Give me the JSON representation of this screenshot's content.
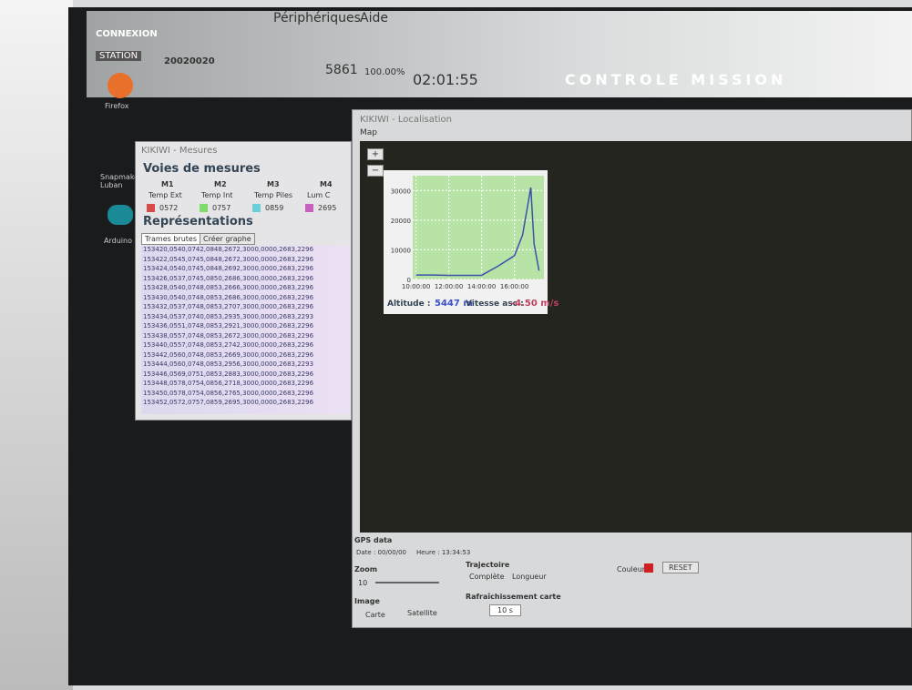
{
  "topbar": {
    "menu": [
      "Périphériques",
      "Aide"
    ],
    "connexion": "CONNEXION",
    "station_label": "STATION",
    "station": "20020020",
    "frames_count": "5861",
    "percent": "100.00%",
    "clock": "02:01:55",
    "banner": "CONTROLE MISSION"
  },
  "desktop_icons": [
    "Firefox",
    "Snapmaker Luban",
    "Arduino"
  ],
  "mesures": {
    "title": "KIKIWI - Mesures",
    "section": "Voies de mesures",
    "channels": [
      {
        "id": "M1",
        "name": "Temp Ext",
        "value": "0572",
        "color": "#d94a4a"
      },
      {
        "id": "M2",
        "name": "Temp Int",
        "value": "0757",
        "color": "#7ddc6a"
      },
      {
        "id": "M3",
        "name": "Temp Piles",
        "value": "0859",
        "color": "#6ad0d8"
      },
      {
        "id": "M4",
        "name": "Lum C",
        "value": "2695",
        "color": "#c860c0"
      }
    ],
    "representations": "Représentations",
    "tabs": [
      "Trames brutes",
      "Créer graphe"
    ],
    "frames": [
      "153420,0540,0742,0848,2672,3000,0000,2683,2296",
      "153422,0545,0745,0848,2672,3000,0000,2683,2296",
      "153424,0540,0745,0848,2692,3000,0000,2683,2296",
      "153426,0537,0745,0850,2686,3000,0000,2683,2296",
      "153428,0540,0748,0853,2666,3000,0000,2683,2296",
      "153430,0540,0748,0853,2686,3000,0000,2683,2296",
      "153432,0537,0748,0853,2707,3000,0000,2683,2296",
      "153434,0537,0740,0853,2935,3000,0000,2683,2293",
      "153436,0551,0748,0853,2921,3000,0000,2683,2296",
      "153438,0557,0748,0853,2672,3000,0000,2683,2296",
      "153440,0557,0748,0853,2742,3000,0000,2683,2296",
      "153442,0560,0748,0853,2669,3000,0000,2683,2296",
      "153444,0560,0748,0853,2956,3000,0000,2683,2293",
      "153446,0569,0751,0853,2883,3000,0000,2683,2296",
      "153448,0578,0754,0856,2718,3000,0000,2683,2296",
      "153450,0578,0754,0856,2765,3000,0000,2683,2296",
      "153452,0572,0757,0859,2695,3000,0000,2683,2296"
    ]
  },
  "localisation": {
    "title": "KIKIWI - Localisation",
    "map_label": "Map",
    "zoom_buttons": [
      "+",
      "−"
    ],
    "chart": {
      "type": "line",
      "x": [
        10,
        11,
        12,
        13,
        14,
        15,
        16,
        16.5,
        17,
        17.2,
        17.5
      ],
      "series": [
        {
          "color": "#3a52a8",
          "values": [
            1500,
            1500,
            1400,
            1400,
            1400,
            4500,
            8000,
            15000,
            31000,
            12000,
            3000
          ]
        }
      ],
      "xlim": [
        9.8,
        17.8
      ],
      "ylim": [
        0,
        35000
      ],
      "xticks": [
        {
          "value": 10,
          "label": "10:00:00"
        },
        {
          "value": 12,
          "label": "12:00:00"
        },
        {
          "value": 14,
          "label": "14:00:00"
        },
        {
          "value": 16,
          "label": "16:00:00"
        }
      ],
      "yticks": [
        0,
        10000,
        20000,
        30000
      ],
      "grid": true
    },
    "altitude_label": "Altitude :",
    "altitude": "5447 m",
    "speed_label": "Vitesse asc :",
    "speed": "-4.50 m/s",
    "gps": {
      "title": "GPS data",
      "date": "Date : 00/00/00",
      "heure": "Heure : 13:34:53"
    },
    "controls": {
      "zoom": "Zoom",
      "zoom_value": "10",
      "image": "Image",
      "carte": "Carte",
      "satellite": "Satellite",
      "trajectoire": "Trajectoire",
      "complete": "Complète",
      "longueur": "Longueur",
      "couleur": "Couleur",
      "reset": "RESET",
      "refresh": "Rafraîchissement carte",
      "refresh_value": "10 s"
    }
  }
}
